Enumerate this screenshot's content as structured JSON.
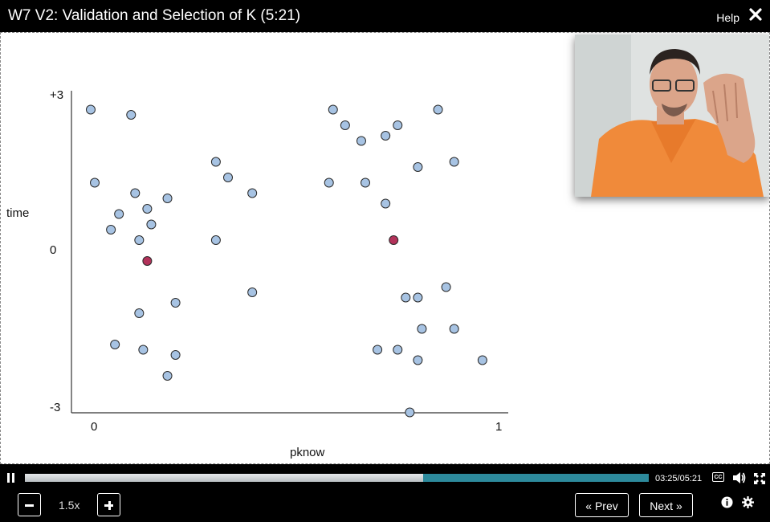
{
  "header": {
    "title": "W7 V2: Validation and Selection of K (5:21)",
    "help_label": "Help",
    "close_icon": "close-icon"
  },
  "chart_data": {
    "type": "scatter",
    "xlabel": "pknow",
    "ylabel": "time",
    "x_ticks": [
      "0",
      "1"
    ],
    "y_ticks": [
      "+3",
      "0",
      "-3"
    ],
    "xlim": [
      0,
      1
    ],
    "ylim": [
      -3,
      3
    ],
    "grid": false,
    "colors": {
      "point": "#a7c3e3",
      "centroid": "#b2325a",
      "axis": "#333333"
    },
    "points": [
      {
        "x": -0.01,
        "y": 2.7
      },
      {
        "x": 0.09,
        "y": 2.6
      },
      {
        "x": 0.0,
        "y": 1.3
      },
      {
        "x": 0.1,
        "y": 1.1
      },
      {
        "x": 0.18,
        "y": 1.0
      },
      {
        "x": 0.13,
        "y": 0.8
      },
      {
        "x": 0.06,
        "y": 0.7
      },
      {
        "x": 0.14,
        "y": 0.5
      },
      {
        "x": 0.04,
        "y": 0.4
      },
      {
        "x": 0.11,
        "y": 0.2
      },
      {
        "x": 0.2,
        "y": -1.0
      },
      {
        "x": 0.11,
        "y": -1.2
      },
      {
        "x": 0.05,
        "y": -1.8
      },
      {
        "x": 0.12,
        "y": -1.9
      },
      {
        "x": 0.2,
        "y": -2.0
      },
      {
        "x": 0.18,
        "y": -2.4
      },
      {
        "x": 0.3,
        "y": 1.7
      },
      {
        "x": 0.33,
        "y": 1.4
      },
      {
        "x": 0.39,
        "y": 1.1
      },
      {
        "x": 0.3,
        "y": 0.2
      },
      {
        "x": 0.39,
        "y": -0.8
      },
      {
        "x": 0.59,
        "y": 2.7
      },
      {
        "x": 0.85,
        "y": 2.7
      },
      {
        "x": 0.62,
        "y": 2.4
      },
      {
        "x": 0.75,
        "y": 2.4
      },
      {
        "x": 0.72,
        "y": 2.2
      },
      {
        "x": 0.66,
        "y": 2.1
      },
      {
        "x": 0.8,
        "y": 1.6
      },
      {
        "x": 0.89,
        "y": 1.7
      },
      {
        "x": 0.58,
        "y": 1.3
      },
      {
        "x": 0.67,
        "y": 1.3
      },
      {
        "x": 0.72,
        "y": 0.9
      },
      {
        "x": 0.87,
        "y": -0.7
      },
      {
        "x": 0.77,
        "y": -0.9
      },
      {
        "x": 0.8,
        "y": -0.9
      },
      {
        "x": 0.81,
        "y": -1.5
      },
      {
        "x": 0.89,
        "y": -1.5
      },
      {
        "x": 0.7,
        "y": -1.9
      },
      {
        "x": 0.75,
        "y": -1.9
      },
      {
        "x": 0.8,
        "y": -2.1
      },
      {
        "x": 0.96,
        "y": -2.1
      },
      {
        "x": 0.78,
        "y": -3.1
      }
    ],
    "centroids": [
      {
        "x": 0.13,
        "y": -0.2
      },
      {
        "x": 0.74,
        "y": 0.2
      }
    ]
  },
  "webcam": {
    "icon": "instructor-video-icon"
  },
  "player": {
    "current_time": "03:25",
    "separator": "/",
    "duration": "05:21",
    "progress": 0.638,
    "cc_label": "CC",
    "speed": "1.5x",
    "prev_label": "« Prev",
    "next_label": "Next »"
  }
}
